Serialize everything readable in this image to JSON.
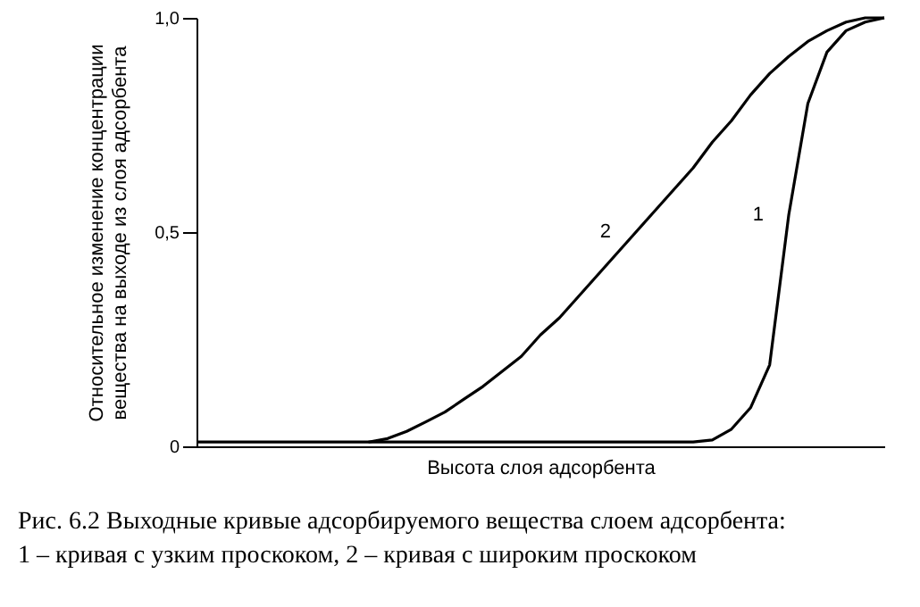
{
  "chart_data": {
    "type": "line",
    "xlabel": "Высота слоя адсорбента",
    "ylabel": "Относительное изменение концентрации вещества на выходе из слоя адсорбента",
    "categories": [
      null,
      null,
      null,
      null,
      null,
      null,
      null,
      null,
      null,
      null,
      null,
      null,
      null,
      null,
      null,
      null,
      null,
      null,
      null,
      null,
      null,
      null,
      null,
      null,
      null,
      null,
      null,
      null,
      null,
      null,
      null,
      null,
      null,
      null,
      null,
      null,
      null
    ],
    "series": [
      {
        "name": "1",
        "color": "#000000",
        "values": [
          0.01,
          0.01,
          0.01,
          0.01,
          0.01,
          0.01,
          0.01,
          0.01,
          0.01,
          0.01,
          0.01,
          0.01,
          0.01,
          0.01,
          0.01,
          0.01,
          0.01,
          0.01,
          0.01,
          0.01,
          0.01,
          0.01,
          0.01,
          0.01,
          0.01,
          0.01,
          0.01,
          0.015,
          0.04,
          0.09,
          0.19,
          0.54,
          0.8,
          0.92,
          0.97,
          0.99,
          1.0
        ]
      },
      {
        "name": "2",
        "color": "#000000",
        "values": [
          null,
          null,
          null,
          null,
          null,
          null,
          null,
          null,
          null,
          0.01,
          0.018,
          0.035,
          0.057,
          0.08,
          0.11,
          0.14,
          0.175,
          0.21,
          0.26,
          0.3,
          0.35,
          0.4,
          0.45,
          0.5,
          0.55,
          0.6,
          0.65,
          0.71,
          0.76,
          0.82,
          0.87,
          0.91,
          0.945,
          0.97,
          0.99,
          1.0,
          1.0
        ]
      }
    ],
    "ylim": [
      0,
      1.0
    ],
    "yticks": [
      0,
      {
        "value": 0.5,
        "label": "0,5"
      },
      {
        "value": 1.0,
        "label": "1,0"
      }
    ],
    "tick_labels": "y",
    "grid": false,
    "annotations": [
      "Рис. 6.2 Выходные кривые адсорбируемого вещества слоем адсорбента:",
      "1 – кривая с узким проскоком, 2 – кривая с широким проскоком"
    ]
  }
}
